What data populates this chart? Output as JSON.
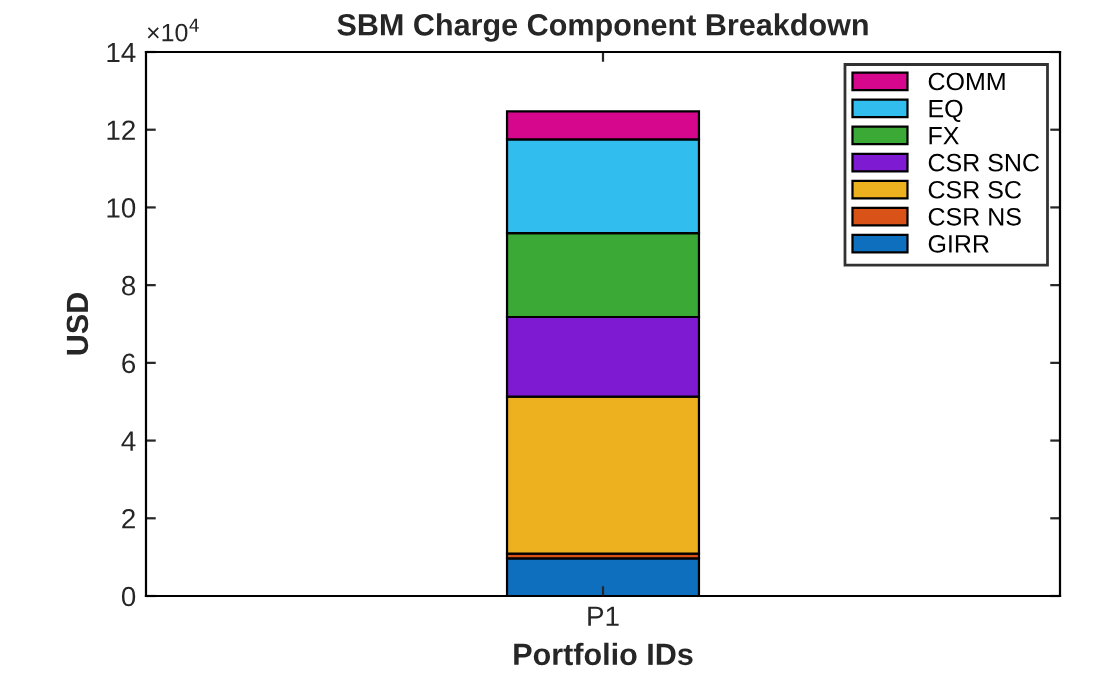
{
  "chart_data": {
    "type": "bar",
    "stacked": true,
    "title": "SBM Charge Component Breakdown",
    "xlabel": "Portfolio IDs",
    "ylabel": "USD",
    "categories": [
      "P1"
    ],
    "series": [
      {
        "name": "GIRR",
        "color": "#0f6fbf",
        "values": [
          0.97
        ]
      },
      {
        "name": "CSR NS",
        "color": "#d95319",
        "values": [
          0.12
        ]
      },
      {
        "name": "CSR SC",
        "color": "#edb120",
        "values": [
          4.04
        ]
      },
      {
        "name": "CSR SNC",
        "color": "#7e1ad2",
        "values": [
          2.05
        ]
      },
      {
        "name": "FX",
        "color": "#3aa935",
        "values": [
          2.16
        ]
      },
      {
        "name": "EQ",
        "color": "#32bdef",
        "values": [
          2.41
        ]
      },
      {
        "name": "COMM",
        "color": "#d6078c",
        "values": [
          0.72
        ]
      }
    ],
    "ylim": [
      0,
      14
    ],
    "yticks": [
      0,
      2,
      4,
      6,
      8,
      10,
      12,
      14
    ],
    "annotations": [
      "×10$^{4}$"
    ],
    "legend": "top right",
    "grid": false
  }
}
